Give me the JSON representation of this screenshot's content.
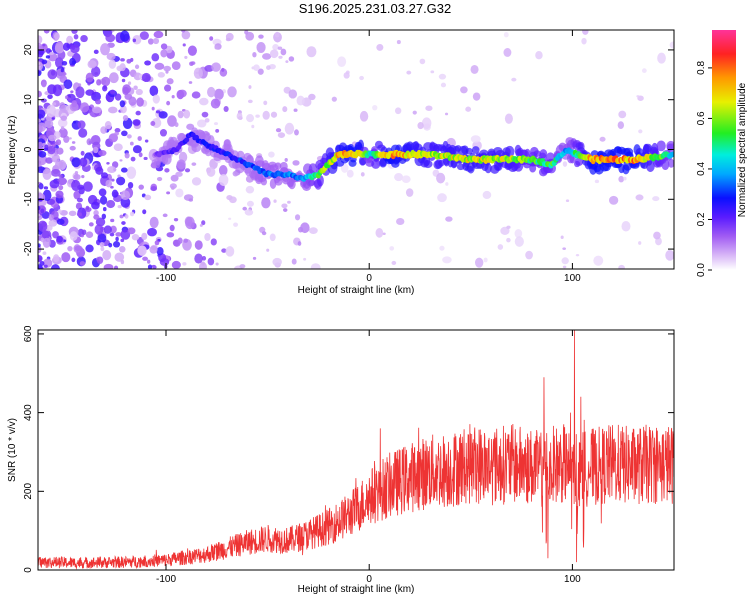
{
  "title": "S196.2025.231.03.27.G32",
  "colors": {
    "snr_line": "#ee3333",
    "axis": "#000000",
    "colormap": [
      "#ffffff",
      "#c89bf5",
      "#7a2bff",
      "#0a10ff",
      "#00e5ff",
      "#33ee33",
      "#f5ee00",
      "#ff9900",
      "#ff2222",
      "#ff33aa"
    ]
  },
  "chart_data": [
    {
      "type": "heatmap",
      "title": "",
      "xlabel": "Height of straight line (km)",
      "ylabel": "Frequency (Hz)",
      "xlim": [
        -163,
        150
      ],
      "ylim": [
        -24,
        24
      ],
      "xticks": [
        -100,
        0,
        100
      ],
      "xtick_labels": [
        "-100",
        "0",
        "100"
      ],
      "yticks": [
        -20,
        -10,
        0,
        10,
        20
      ],
      "ytick_labels": [
        "-20",
        "-10",
        "0",
        "10",
        "20"
      ],
      "colorbar": {
        "label": "Normalized spectral amplitude",
        "range": [
          0,
          0.95
        ],
        "ticks": [
          0.0,
          0.2,
          0.4,
          0.6,
          0.8
        ],
        "tick_labels": [
          "0.0",
          "0.2",
          "0.4",
          "0.6",
          "0.8"
        ]
      },
      "ridge": {
        "description_x_km": [
          -105,
          -95,
          -88,
          -80,
          -70,
          -60,
          -50,
          -40,
          -33,
          -25,
          -15,
          -5,
          0,
          10,
          30,
          50,
          70,
          80,
          90,
          97,
          102,
          110,
          130,
          150
        ],
        "frequency_hz": [
          -1,
          0,
          3,
          1,
          -1,
          -3,
          -5,
          -5,
          -6,
          -5,
          -1,
          -1,
          -1,
          -1,
          -1,
          -2,
          -2,
          -2,
          -3,
          0,
          -1,
          -2,
          -2,
          -1
        ],
        "amplitude": [
          0.2,
          0.25,
          0.3,
          0.3,
          0.3,
          0.35,
          0.4,
          0.4,
          0.4,
          0.6,
          0.8,
          0.85,
          0.5,
          0.85,
          0.7,
          0.75,
          0.7,
          0.6,
          0.6,
          0.4,
          0.6,
          0.85,
          0.85,
          0.5
        ]
      }
    },
    {
      "type": "line",
      "title": "",
      "xlabel": "Height of straight line (km)",
      "ylabel": "SNR (10 * v/v)",
      "xlim": [
        -163,
        150
      ],
      "ylim": [
        0,
        610
      ],
      "xticks": [
        -100,
        0,
        100
      ],
      "xtick_labels": [
        "-100",
        "0",
        "100"
      ],
      "yticks": [
        0,
        200,
        400,
        600
      ],
      "ytick_labels": [
        "0",
        "200",
        "400",
        "600"
      ],
      "series": [
        {
          "name": "SNR",
          "x": [
            -163,
            -140,
            -120,
            -100,
            -80,
            -70,
            -60,
            -50,
            -40,
            -30,
            -20,
            -10,
            -5,
            0,
            5,
            10,
            20,
            30,
            40,
            50,
            60,
            70,
            80,
            85,
            90,
            95,
            100,
            105,
            110,
            120,
            130,
            140,
            150
          ],
          "y": [
            20,
            18,
            20,
            25,
            40,
            55,
            70,
            80,
            75,
            90,
            110,
            140,
            160,
            185,
            200,
            215,
            235,
            250,
            255,
            270,
            265,
            270,
            262,
            255,
            265,
            270,
            262,
            255,
            262,
            270,
            265,
            270,
            268
          ],
          "spikes": [
            {
              "x": 5.5,
              "y": 360
            },
            {
              "x": 86,
              "y": 490
            },
            {
              "x": 88,
              "y": 30
            },
            {
              "x": 99,
              "y": 400
            },
            {
              "x": 101,
              "y": 610
            },
            {
              "x": 102,
              "y": 20
            },
            {
              "x": 104,
              "y": 450
            }
          ]
        }
      ]
    }
  ]
}
